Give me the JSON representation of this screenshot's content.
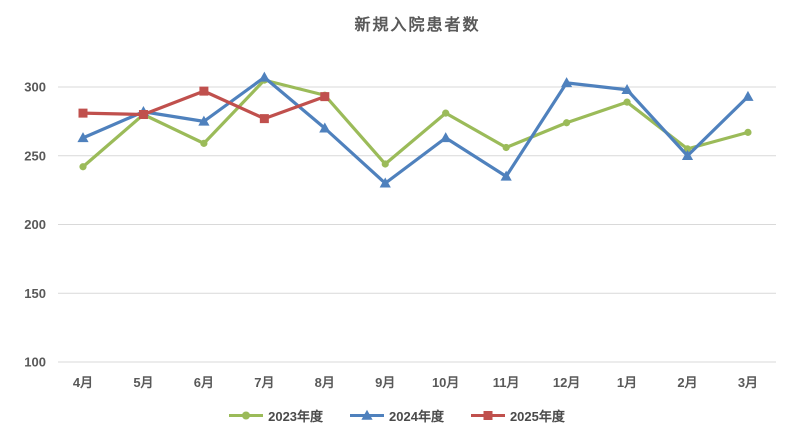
{
  "chart_data": {
    "type": "line",
    "title": "新規入院患者数",
    "categories": [
      "4月",
      "5月",
      "6月",
      "7月",
      "8月",
      "9月",
      "10月",
      "11月",
      "12月",
      "1月",
      "2月",
      "3月"
    ],
    "series": [
      {
        "id": "2023",
        "name": "2023年度",
        "color": "#9BBB59",
        "marker": "circle",
        "values": [
          242,
          280,
          259,
          305,
          294,
          244,
          281,
          256,
          274,
          289,
          255,
          267
        ]
      },
      {
        "id": "2024",
        "name": "2024年度",
        "color": "#4F81BD",
        "marker": "triangle",
        "values": [
          263,
          282,
          275,
          307,
          270,
          230,
          263,
          235,
          303,
          298,
          250,
          293
        ]
      },
      {
        "id": "2025",
        "name": "2025年度",
        "color": "#C0504D",
        "marker": "square",
        "values": [
          281,
          280,
          297,
          277,
          293,
          null,
          null,
          null,
          null,
          null,
          null,
          null
        ]
      }
    ],
    "yticks": [
      100,
      150,
      200,
      250,
      300
    ],
    "ylim": [
      100,
      320
    ],
    "grid": true,
    "legend_position": "bottom",
    "text_color": "#595959",
    "grid_color": "#D9D9D9",
    "background_color": "#FFFFFF"
  }
}
